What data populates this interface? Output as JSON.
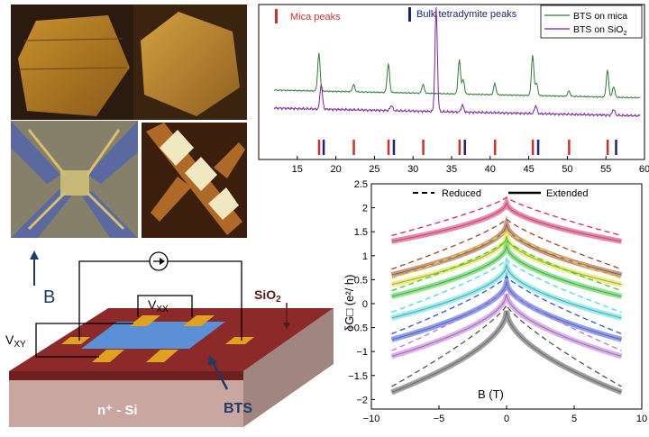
{
  "xrd": {
    "legend_red": "Mica peaks",
    "legend_blue": "Bulk tetradymite peaks",
    "series_mica": "BTS on mica",
    "series_sio2_prefix": "BTS on SiO",
    "series_sio2_sub": "2",
    "colors": {
      "mica_curve": "#2e7d32",
      "sio2_curve": "#7b1fa2",
      "mica_marker": "#d32f2f",
      "bulk_marker": "#1a237e"
    }
  },
  "device": {
    "B_label": "B",
    "vxx_prefix": "V",
    "vxx_sub": "XX",
    "vxy_prefix": "V",
    "vxy_sub": "XY",
    "sio2_prefix": "SiO",
    "sio2_sub": "2",
    "substrate": "n⁺ - Si",
    "bts": "BTS"
  },
  "wal": {
    "ylabel": "δG□ (e²/ h)",
    "xlabel": "B (T)",
    "legend_reduced": "Reduced",
    "legend_extended": "Extended"
  },
  "chart_data": [
    {
      "type": "line",
      "xlim": [
        10,
        60
      ],
      "x_ticks": [
        15,
        20,
        25,
        30,
        35,
        40,
        45,
        50,
        55,
        60
      ],
      "mica_peaks_2theta": [
        17.8,
        22.3,
        26.8,
        31.3,
        36.0,
        40.6,
        45.5,
        50.2,
        55.2
      ],
      "bulk_peaks_2theta": [
        18.1,
        27.2,
        36.4,
        45.9,
        56.0
      ],
      "series": [
        {
          "name": "BTS on mica",
          "peaks": [
            17.8,
            22.3,
            26.8,
            31.3,
            36.0,
            36.5,
            40.6,
            45.5,
            46.0,
            50.2,
            55.2,
            56.0
          ]
        },
        {
          "name": "BTS on SiO2",
          "peaks": [
            18.1,
            27.2,
            33.0,
            36.4,
            45.9,
            56.0
          ]
        }
      ]
    },
    {
      "type": "line",
      "xlabel": "B (T)",
      "ylabel": "δG□ (e²/ h)",
      "xlim": [
        -10,
        10
      ],
      "ylim": [
        -2.2,
        2.5
      ],
      "x_ticks": [
        -10,
        -5,
        0,
        5,
        10
      ],
      "y_ticks": [
        -2,
        -1.5,
        -1,
        -0.5,
        0,
        0.5,
        1,
        1.5,
        2,
        2.5
      ],
      "curves": [
        {
          "color": "#e0245e",
          "peak": 2.1,
          "edge": 1.3
        },
        {
          "color": "#a0461e",
          "peak": 1.65,
          "edge": 0.6
        },
        {
          "color": "#e0e020",
          "peak": 1.4,
          "edge": 0.4
        },
        {
          "color": "#30d030",
          "peak": 1.2,
          "edge": 0.15
        },
        {
          "color": "#40e0e0",
          "peak": 0.8,
          "edge": -0.3
        },
        {
          "color": "#3050e0",
          "peak": 0.45,
          "edge": -0.75
        },
        {
          "color": "#c070e0",
          "peak": 0.2,
          "edge": -1.1
        },
        {
          "color": "#505050",
          "peak": -0.15,
          "edge": -1.85
        }
      ]
    }
  ]
}
